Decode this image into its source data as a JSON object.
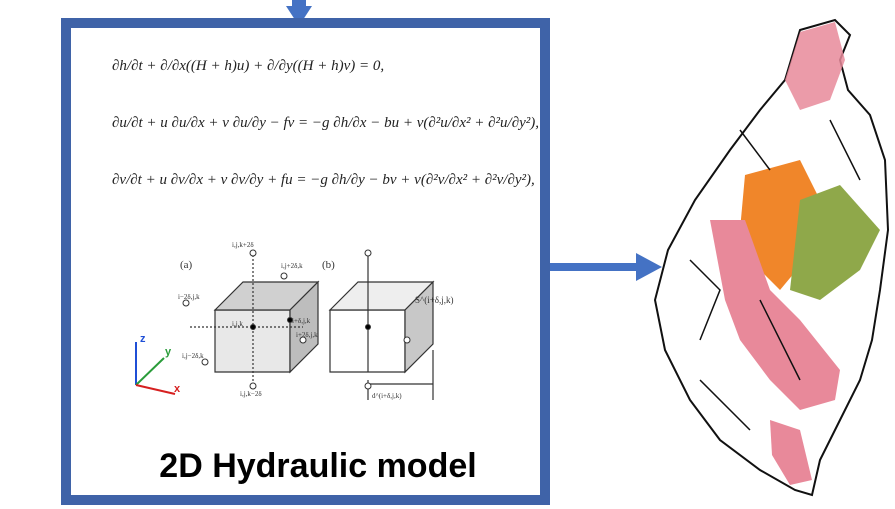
{
  "equations": [
    "∂h/∂t + ∂/∂x((H + h)u) + ∂/∂y((H + h)v) = 0,",
    "∂u/∂t + u ∂u/∂x + v ∂u/∂y − fv = −g ∂h/∂x − bu + ν(∂²u/∂x² + ∂²u/∂y²),",
    "∂v/∂t + u ∂v/∂x + v ∂v/∂y + fu = −g ∂h/∂y − bv + ν(∂²v/∂x² + ∂²v/∂y²),"
  ],
  "panel_a": {
    "label": "(a)",
    "node_labels": [
      "i,j,k+2δ",
      "i,j+2δ,k",
      "i−2δ,j,k",
      "i,j,k",
      "i+δ,j,k",
      "i+2δ,j,k",
      "i,j−2δ,k",
      "i,j,k−2δ"
    ]
  },
  "panel_b": {
    "label": "(b)",
    "node_labels": [
      "S^(i+δ,j,k)",
      "d^(i+δ,j,k)"
    ]
  },
  "axes": {
    "z": "z",
    "y": "y",
    "x": "x"
  },
  "caption": "2D Hydraulic model"
}
